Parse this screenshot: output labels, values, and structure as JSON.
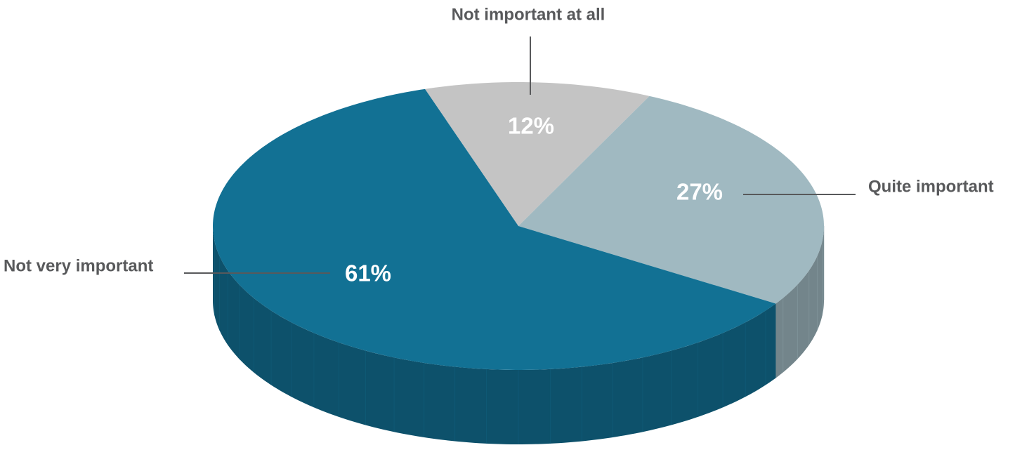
{
  "chart_data": {
    "type": "pie",
    "categories": [
      "Not important at all",
      "Quite important",
      "Not very important"
    ],
    "values": [
      12,
      27,
      61
    ],
    "value_labels": [
      "12%",
      "27%",
      "61%"
    ],
    "colors": [
      "#c4c4c4",
      "#a0b9c1",
      "#127194"
    ]
  }
}
